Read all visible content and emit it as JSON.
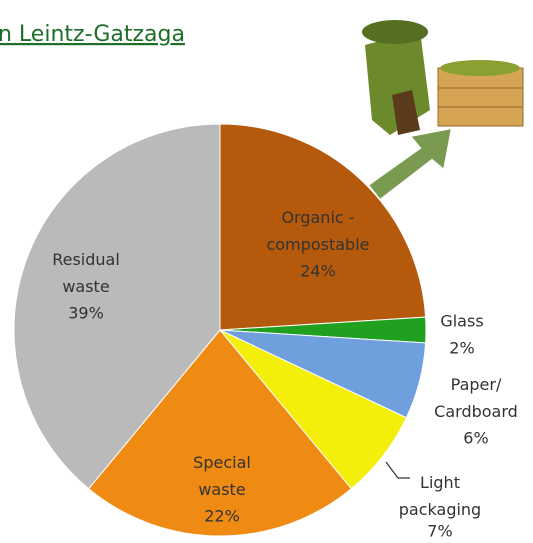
{
  "chart_data": {
    "type": "pie",
    "title": "n Leintz-Gatzaga",
    "categories": [
      "Organic -\ncompostable",
      "Glass",
      "Paper/\nCardboard",
      "Light\npackaging",
      "Special\nwaste",
      "Residual\nwaste"
    ],
    "values": [
      24,
      2,
      6,
      7,
      22,
      39
    ],
    "value_labels": [
      "24%",
      "2%",
      "6%",
      "7%",
      "22%",
      "39%"
    ],
    "colors": [
      "#b55a0c",
      "#1fa01f",
      "#6f9fdc",
      "#f3ef0a",
      "#ef8a12",
      "#bababa"
    ]
  }
}
